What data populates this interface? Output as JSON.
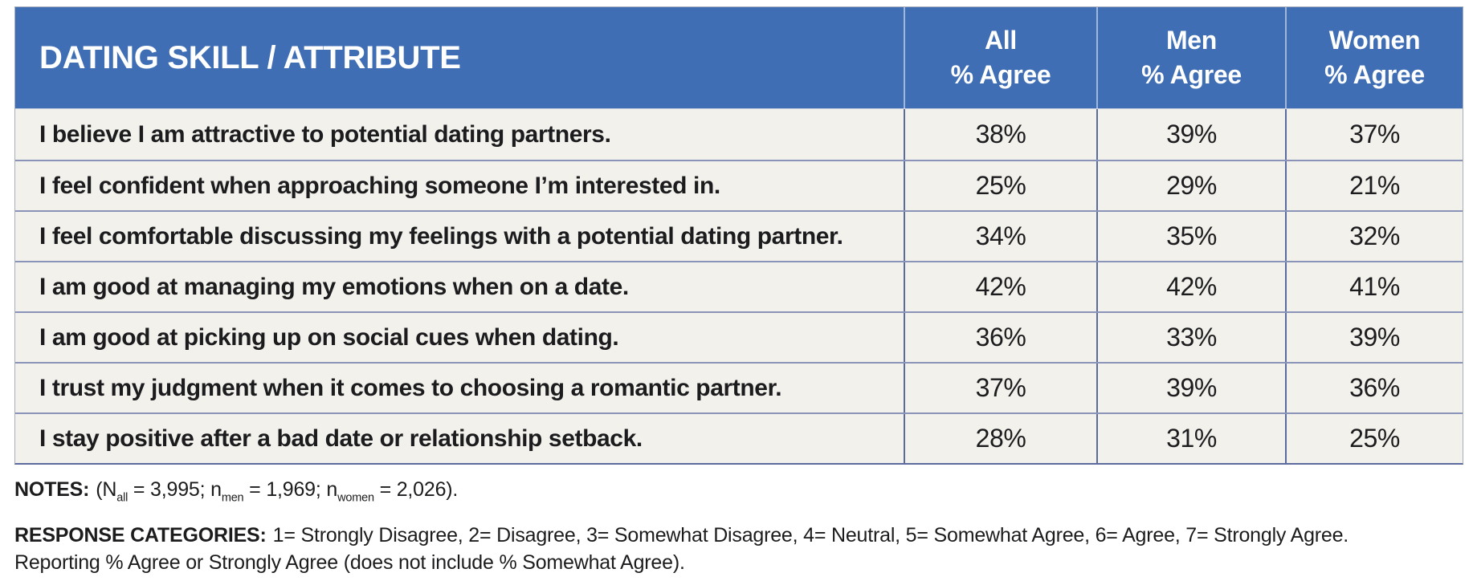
{
  "colors": {
    "header_bg": "#3F6EB5",
    "row_bg": "#F2F1EC",
    "grid_dark": "#5C6B9E",
    "grid_light": "#8A93B8",
    "outer_border": "#A9AEBE",
    "header_text": "#FFFFFF",
    "body_text": "#1C1C1E"
  },
  "table": {
    "header": {
      "skill_label": "DATING SKILL / ATTRIBUTE",
      "columns": [
        {
          "line1": "All",
          "line2": "% Agree"
        },
        {
          "line1": "Men",
          "line2": "% Agree"
        },
        {
          "line1": "Women",
          "line2": "% Agree"
        }
      ]
    },
    "rows": [
      {
        "label": "I believe I am attractive to potential dating partners.",
        "all": "38%",
        "men": "39%",
        "women": "37%"
      },
      {
        "label": "I feel confident when approaching someone I’m interested in.",
        "all": "25%",
        "men": "29%",
        "women": "21%"
      },
      {
        "label": "I feel comfortable discussing my feelings with a potential dating partner.",
        "all": "34%",
        "men": "35%",
        "women": "32%"
      },
      {
        "label": "I am good at managing my emotions when on a date.",
        "all": "42%",
        "men": "42%",
        "women": "41%"
      },
      {
        "label": "I am good at picking up on social cues when dating.",
        "all": "36%",
        "men": "33%",
        "women": "39%"
      },
      {
        "label": "I trust my judgment when it comes to choosing a romantic partner.",
        "all": "37%",
        "men": "39%",
        "women": "36%"
      },
      {
        "label": "I stay positive after a bad date or relationship setback.",
        "all": "28%",
        "men": "31%",
        "women": "25%"
      }
    ]
  },
  "notes": {
    "label": "NOTES:",
    "segments": [
      {
        "t": "(N"
      },
      {
        "t": "all",
        "sub": true
      },
      {
        "t": " = 3,995; n"
      },
      {
        "t": "men",
        "sub": true
      },
      {
        "t": " = 1,969; n"
      },
      {
        "t": "women",
        "sub": true
      },
      {
        "t": " = 2,026)."
      }
    ]
  },
  "response": {
    "label": "RESPONSE CATEGORIES:",
    "line1": "1= Strongly Disagree, 2= Disagree, 3= Somewhat Disagree, 4= Neutral, 5= Somewhat Agree, 6= Agree, 7= Strongly Agree.",
    "line2": "Reporting % Agree or Strongly Agree (does not include % Somewhat Agree)."
  },
  "chart_data": {
    "type": "table",
    "title": "DATING SKILL / ATTRIBUTE",
    "columns": [
      "All % Agree",
      "Men % Agree",
      "Women % Agree"
    ],
    "categories": [
      "I believe I am attractive to potential dating partners.",
      "I feel confident when approaching someone I’m interested in.",
      "I feel comfortable discussing my feelings with a potential dating partner.",
      "I am good at managing my emotions when on a date.",
      "I am good at picking up on social cues when dating.",
      "I trust my judgment when it comes to choosing a romantic partner.",
      "I stay positive after a bad date or relationship setback."
    ],
    "series": [
      {
        "name": "All % Agree",
        "values": [
          38,
          25,
          34,
          42,
          36,
          37,
          28
        ]
      },
      {
        "name": "Men % Agree",
        "values": [
          39,
          29,
          35,
          42,
          33,
          39,
          31
        ]
      },
      {
        "name": "Women % Agree",
        "values": [
          37,
          21,
          32,
          41,
          39,
          36,
          25
        ]
      }
    ],
    "notes": "(N_all = 3,995; n_men = 1,969; n_women = 2,026).",
    "response_categories": "1= Strongly Disagree, 2= Disagree, 3= Somewhat Disagree, 4= Neutral, 5= Somewhat Agree, 6= Agree, 7= Strongly Agree. Reporting % Agree or Strongly Agree (does not include % Somewhat Agree)."
  }
}
